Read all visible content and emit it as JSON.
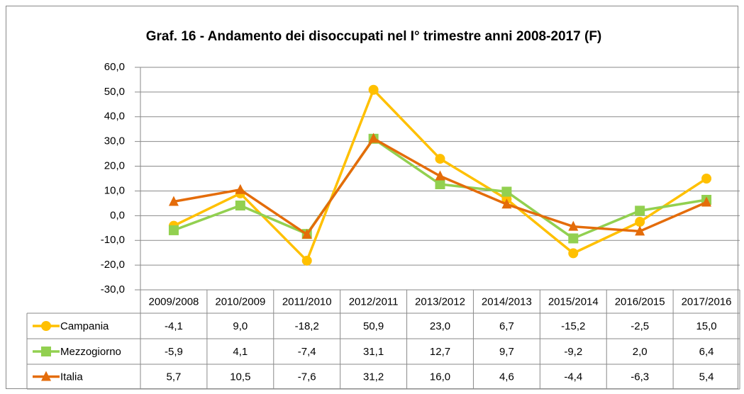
{
  "chart_data": {
    "type": "line",
    "title": "Graf. 16 - Andamento dei disoccupati nel I° trimestre anni 2008-2017 (F)",
    "categories": [
      "2009/2008",
      "2010/2009",
      "2011/2010",
      "2012/2011",
      "2013/2012",
      "2014/2013",
      "2015/2014",
      "2016/2015",
      "2017/2016"
    ],
    "series": [
      {
        "name": "Campania",
        "color": "#FFC000",
        "marker": "circle",
        "values": [
          -4.1,
          9.0,
          -18.2,
          50.9,
          23.0,
          6.7,
          -15.2,
          -2.5,
          15.0
        ],
        "value_labels": [
          "-4,1",
          "9,0",
          "-18,2",
          "50,9",
          "23,0",
          "6,7",
          "-15,2",
          "-2,5",
          "15,0"
        ]
      },
      {
        "name": "Mezzogiorno",
        "color": "#92D050",
        "marker": "square",
        "values": [
          -5.9,
          4.1,
          -7.4,
          31.1,
          12.7,
          9.7,
          -9.2,
          2.0,
          6.4
        ],
        "value_labels": [
          "-5,9",
          "4,1",
          "-7,4",
          "31,1",
          "12,7",
          "9,7",
          "-9,2",
          "2,0",
          "6,4"
        ]
      },
      {
        "name": "Italia",
        "color": "#E46C0A",
        "marker": "triangle",
        "values": [
          5.7,
          10.5,
          -7.6,
          31.2,
          16.0,
          4.6,
          -4.4,
          -6.3,
          5.4
        ],
        "value_labels": [
          "5,7",
          "10,5",
          "-7,6",
          "31,2",
          "16,0",
          "4,6",
          "-4,4",
          "-6,3",
          "5,4"
        ]
      }
    ],
    "ylim": [
      -30,
      60
    ],
    "yticks": [
      {
        "value": -30,
        "label": "-30,0"
      },
      {
        "value": -20,
        "label": "-20,0"
      },
      {
        "value": -10,
        "label": "-10,0"
      },
      {
        "value": 0,
        "label": "0,0"
      },
      {
        "value": 10,
        "label": "10,0"
      },
      {
        "value": 20,
        "label": "20,0"
      },
      {
        "value": 30,
        "label": "30,0"
      },
      {
        "value": 40,
        "label": "40,0"
      },
      {
        "value": 50,
        "label": "50,0"
      },
      {
        "value": 60,
        "label": "60,0"
      }
    ],
    "grid": true
  }
}
